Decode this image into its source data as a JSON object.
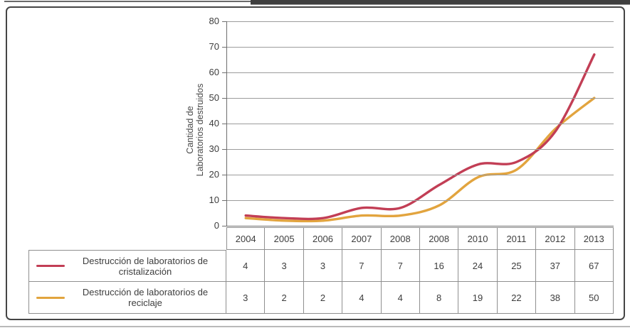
{
  "figure": {
    "kind": "statistics-figure",
    "background": "#ffffff"
  },
  "chart_data": {
    "type": "line",
    "title": "",
    "ylabel_lines": [
      "Cantidad de",
      "Laboratorios destruidos"
    ],
    "ylabel": "Cantidad de Laboratorios destruidos",
    "categories": [
      "2004",
      "2005",
      "2006",
      "2007",
      "2008",
      "2008",
      "2010",
      "2011",
      "2012",
      "2013"
    ],
    "y_ticks": [
      80,
      70,
      60,
      50,
      40,
      30,
      20,
      10,
      0
    ],
    "ylim": [
      0,
      80
    ],
    "grid": true,
    "legend_position": "table-left",
    "series": [
      {
        "name": "Destrucción de laboratorios de cristalización",
        "color": "#c23e55",
        "values": [
          4,
          3,
          3,
          7,
          7,
          16,
          24,
          25,
          37,
          67
        ]
      },
      {
        "name": "Destrucción de laboratorios de reciclaje",
        "color": "#e2a43e",
        "values": [
          3,
          2,
          2,
          4,
          4,
          8,
          19,
          22,
          38,
          50
        ]
      }
    ]
  },
  "colors": {
    "grid": "#9c9c9c",
    "axis": "#6e6e6e",
    "table_border": "#8f8f8f",
    "text": "#3d3d3d",
    "outer_border": "#454545"
  }
}
